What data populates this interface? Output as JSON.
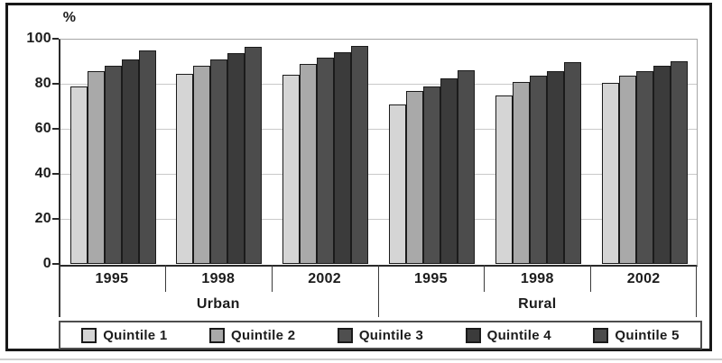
{
  "chart_data": {
    "type": "bar",
    "title": "",
    "ylabel": "%",
    "ylim": [
      0,
      100
    ],
    "yticks": [
      0,
      20,
      40,
      60,
      80,
      100
    ],
    "grid": true,
    "legend_position": "bottom",
    "group_labels": [
      "1995",
      "1998",
      "2002",
      "1995",
      "1998",
      "2002"
    ],
    "region_labels": [
      {
        "label": "Urban",
        "span": [
          0,
          3
        ]
      },
      {
        "label": "Rural",
        "span": [
          3,
          6
        ]
      }
    ],
    "series": [
      {
        "name": "Quintile 1",
        "color": "#d5d5d5",
        "values": [
          79,
          84.5,
          84,
          71,
          75,
          80.5
        ]
      },
      {
        "name": "Quintile 2",
        "color": "#a9a9a9",
        "values": [
          85.5,
          88,
          89,
          77,
          81,
          83.5
        ]
      },
      {
        "name": "Quintile 3",
        "color": "#4f4f4f",
        "values": [
          88,
          91,
          91.5,
          79,
          83.5,
          85.5
        ]
      },
      {
        "name": "Quintile 4",
        "color": "#3b3b3b",
        "values": [
          91,
          93.5,
          94,
          82.5,
          85.5,
          88
        ]
      },
      {
        "name": "Quintile 5",
        "color": "#4c4c4c",
        "values": [
          95,
          96.5,
          97,
          86,
          89.5,
          90
        ]
      }
    ],
    "axis_colors": {
      "gridline": "#c9c9c9",
      "axis": "#2a2a2a",
      "bar_outline": "#1b1b1b"
    }
  }
}
